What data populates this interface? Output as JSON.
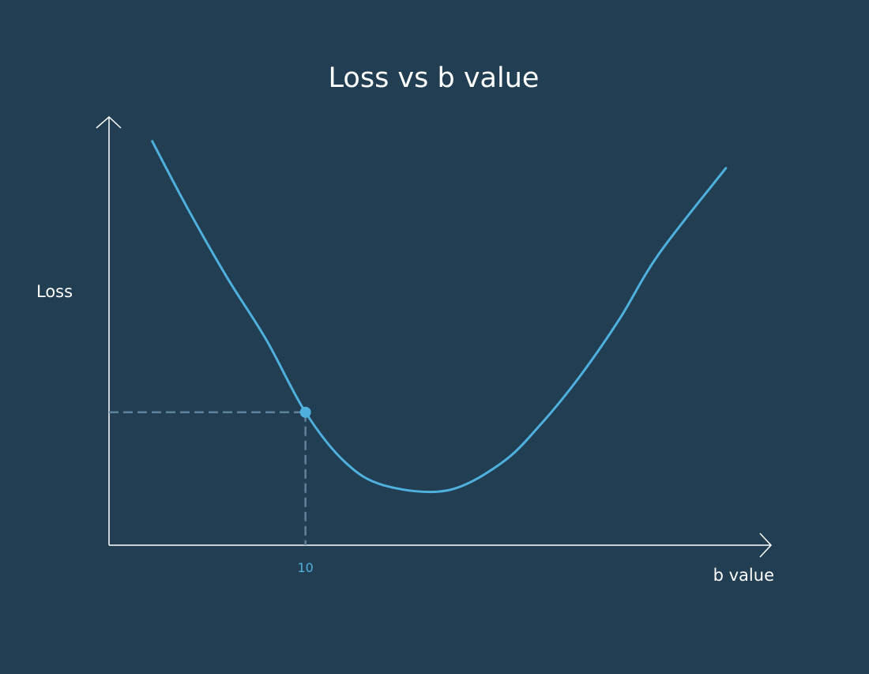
{
  "chart_data": {
    "type": "line",
    "title": "Loss vs b value",
    "xlabel": "b value",
    "ylabel": "Loss",
    "x_ticks": [
      10
    ],
    "x_tick_labels": [
      "10"
    ],
    "xlim": [
      0,
      33.7
    ],
    "ylim": [
      0,
      10
    ],
    "grid": false,
    "legend": "none",
    "series": [
      {
        "x": [
          2.2,
          4,
          6,
          8,
          10,
          12,
          14,
          17.2,
          20,
          22,
          24,
          26,
          28,
          31.4
        ],
        "y": [
          9.45,
          7.88,
          6.27,
          4.81,
          3.11,
          1.95,
          1.4,
          1.28,
          1.93,
          2.84,
          3.97,
          5.3,
          6.82,
          8.82
        ]
      }
    ],
    "highlight": {
      "x": 10,
      "y": 3.11,
      "guide_lines": "dashed"
    },
    "colors": {
      "background": "#213e53",
      "curve": "#4fb0de",
      "axes": "#ffffff",
      "guide": "#5f8199",
      "tick_label": "#4fb0de"
    }
  }
}
